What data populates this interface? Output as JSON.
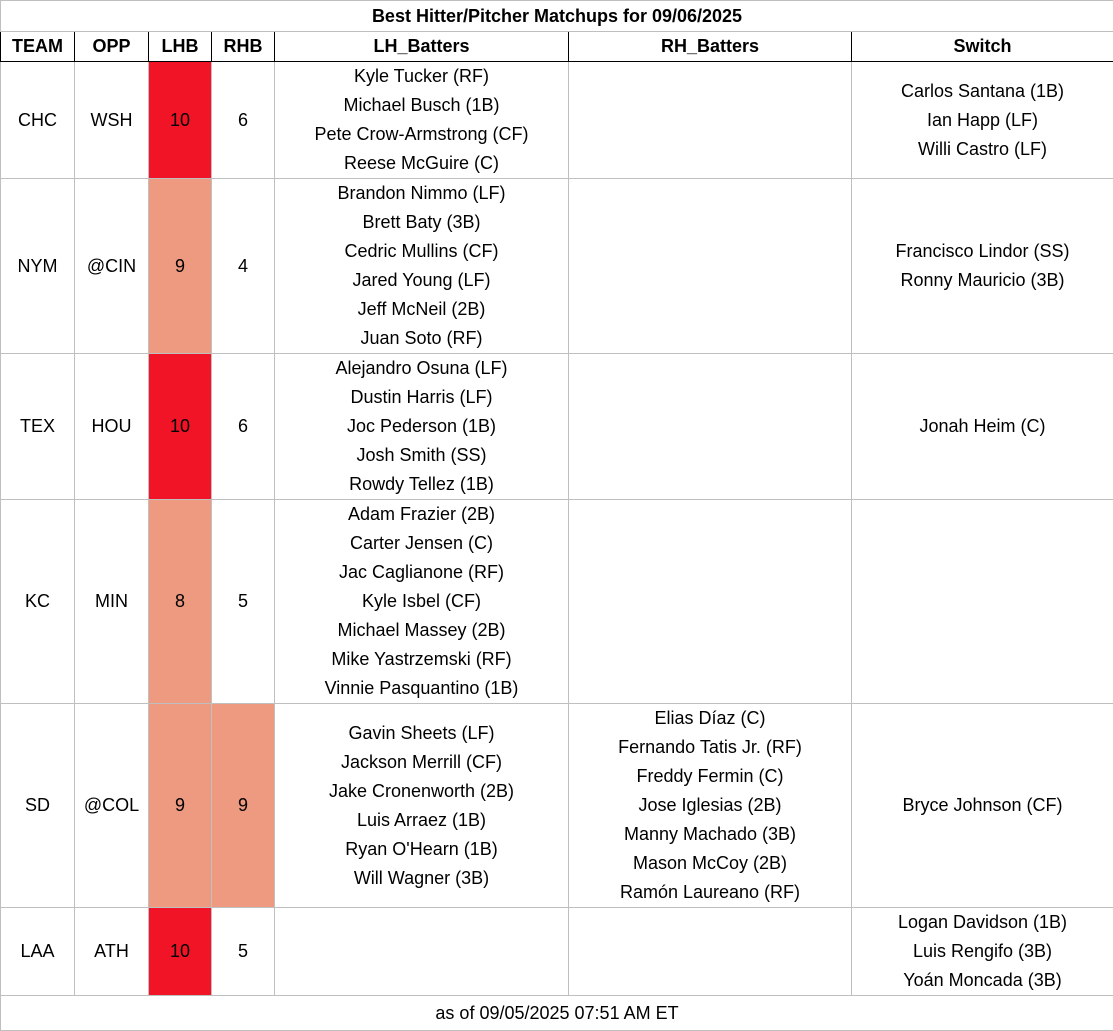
{
  "title": "Best Hitter/Pitcher Matchups for 09/06/2025",
  "headers": [
    "TEAM",
    "OPP",
    "LHB",
    "RHB",
    "LH_Batters",
    "RH_Batters",
    "Switch"
  ],
  "colors": {
    "high": "#f01426",
    "mid": "#ed9a81"
  },
  "rows": [
    {
      "team": "CHC",
      "opp": "WSH",
      "lhb": "10",
      "rhb": "6",
      "lhb_level": "high",
      "rhb_level": "none",
      "lh_batters": [
        "Kyle Tucker (RF)",
        "Michael Busch (1B)",
        "Pete Crow-Armstrong (CF)",
        "Reese McGuire (C)"
      ],
      "rh_batters": [],
      "switch": [
        "Carlos Santana (1B)",
        "Ian Happ (LF)",
        "Willi Castro (LF)"
      ]
    },
    {
      "team": "NYM",
      "opp": "@CIN",
      "lhb": "9",
      "rhb": "4",
      "lhb_level": "mid",
      "rhb_level": "none",
      "lh_batters": [
        "Brandon Nimmo (LF)",
        "Brett Baty (3B)",
        "Cedric Mullins (CF)",
        "Jared Young (LF)",
        "Jeff McNeil (2B)",
        "Juan Soto (RF)"
      ],
      "rh_batters": [],
      "switch": [
        "Francisco Lindor (SS)",
        "Ronny Mauricio (3B)"
      ]
    },
    {
      "team": "TEX",
      "opp": "HOU",
      "lhb": "10",
      "rhb": "6",
      "lhb_level": "high",
      "rhb_level": "none",
      "lh_batters": [
        "Alejandro Osuna (LF)",
        "Dustin Harris (LF)",
        "Joc Pederson (1B)",
        "Josh Smith (SS)",
        "Rowdy Tellez (1B)"
      ],
      "rh_batters": [],
      "switch": [
        "Jonah Heim (C)"
      ]
    },
    {
      "team": "KC",
      "opp": "MIN",
      "lhb": "8",
      "rhb": "5",
      "lhb_level": "mid",
      "rhb_level": "none",
      "lh_batters": [
        "Adam Frazier (2B)",
        "Carter Jensen (C)",
        "Jac Caglianone (RF)",
        "Kyle Isbel (CF)",
        "Michael Massey (2B)",
        "Mike Yastrzemski (RF)",
        "Vinnie Pasquantino (1B)"
      ],
      "rh_batters": [],
      "switch": []
    },
    {
      "team": "SD",
      "opp": "@COL",
      "lhb": "9",
      "rhb": "9",
      "lhb_level": "mid",
      "rhb_level": "mid",
      "lh_batters": [
        "Gavin Sheets (LF)",
        "Jackson Merrill (CF)",
        "Jake Cronenworth (2B)",
        "Luis Arraez (1B)",
        "Ryan O'Hearn (1B)",
        "Will Wagner (3B)"
      ],
      "rh_batters": [
        "Elias Díaz (C)",
        "Fernando Tatis Jr. (RF)",
        "Freddy Fermin (C)",
        "Jose Iglesias (2B)",
        "Manny Machado (3B)",
        "Mason McCoy (2B)",
        "Ramón Laureano (RF)"
      ],
      "switch": [
        "Bryce Johnson (CF)"
      ]
    },
    {
      "team": "LAA",
      "opp": "ATH",
      "lhb": "10",
      "rhb": "5",
      "lhb_level": "high",
      "rhb_level": "none",
      "lh_batters": [],
      "rh_batters": [],
      "switch": [
        "Logan Davidson (1B)",
        "Luis Rengifo (3B)",
        "Yoán Moncada (3B)"
      ]
    }
  ],
  "footer": "as of 09/05/2025 07:51 AM ET"
}
